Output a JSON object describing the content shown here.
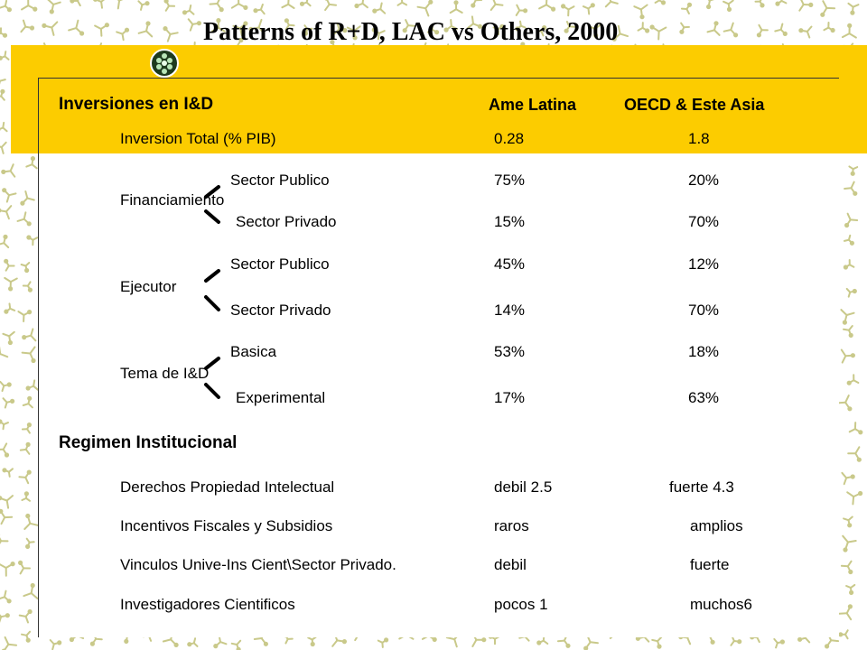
{
  "title": "Patterns of R+D, LAC vs Others,  2000",
  "headers": {
    "section1": "Inversiones en I&D",
    "col1": "Ame Latina",
    "col2": "OECD & Este Asia"
  },
  "total": {
    "label": "Inversion Total (% PIB)",
    "v1": "0.28",
    "v2": "1.8"
  },
  "groups": [
    {
      "label": "Financiamiento",
      "rows": [
        {
          "label": "Sector Publico",
          "v1": "75%",
          "v2": "20%"
        },
        {
          "label": "Sector Privado",
          "v1": "15%",
          "v2": "70%"
        }
      ]
    },
    {
      "label": "Ejecutor",
      "rows": [
        {
          "label": "Sector Publico",
          "v1": "45%",
          "v2": "12%"
        },
        {
          "label": "Sector Privado",
          "v1": "14%",
          "v2": "70%"
        }
      ]
    },
    {
      "label": "Tema de I&D",
      "rows": [
        {
          "label": "Basica",
          "v1": "53%",
          "v2": "18%"
        },
        {
          "label": "Experimental",
          "v1": "17%",
          "v2": "63%"
        }
      ]
    }
  ],
  "section2": "Regimen Institucional",
  "regimen": [
    {
      "label": "Derechos Propiedad Intelectual",
      "v1": "debil 2.5",
      "v2": "fuerte 4.3"
    },
    {
      "label": "Incentivos Fiscales y Subsidios",
      "v1": "raros",
      "v2": "amplios"
    },
    {
      "label": "Vinculos Unive-Ins Cient\\Sector Privado.",
      "v1": "debil",
      "v2": "fuerte"
    },
    {
      "label": "Investigadores Cientificos",
      "v1": "pocos  1",
      "v2": "muchos6"
    }
  ],
  "colors": {
    "accent": "#fccc00",
    "pattern": "#c9c98a"
  }
}
